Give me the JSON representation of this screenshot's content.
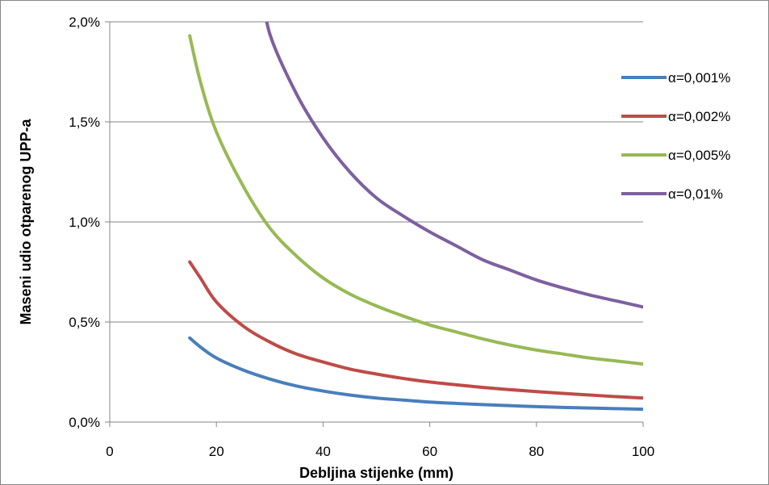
{
  "chart_data": {
    "type": "line",
    "title": "",
    "xlabel": "Debljina stijenke (mm)",
    "ylabel": "Maseni udio otparenog UPP-a",
    "xlim": [
      0,
      100
    ],
    "ylim": [
      0,
      2.0
    ],
    "x_ticks": [
      0,
      20,
      40,
      60,
      80,
      100
    ],
    "x_tick_labels": [
      "0",
      "20",
      "40",
      "60",
      "80",
      "100"
    ],
    "y_ticks": [
      0,
      0.5,
      1.0,
      1.5,
      2.0
    ],
    "y_tick_labels": [
      "0,0%",
      "0,5%",
      "1,0%",
      "1,5%",
      "2,0%"
    ],
    "grid": "horizontal",
    "legend_position": "right",
    "x": [
      15,
      17,
      20,
      25,
      30,
      35,
      40,
      45,
      50,
      55,
      60,
      65,
      70,
      75,
      80,
      85,
      90,
      95,
      100
    ],
    "series": [
      {
        "name": "α=0,001%",
        "color": "#4A7EBB",
        "values": [
          0.42,
          0.375,
          0.32,
          0.26,
          0.215,
          0.18,
          0.155,
          0.135,
          0.12,
          0.11,
          0.1,
          0.093,
          0.087,
          0.082,
          0.077,
          0.073,
          0.07,
          0.067,
          0.064
        ]
      },
      {
        "name": "α=0,002%",
        "color": "#BE4B48",
        "values": [
          0.8,
          0.72,
          0.6,
          0.48,
          0.4,
          0.34,
          0.3,
          0.265,
          0.24,
          0.218,
          0.2,
          0.186,
          0.173,
          0.162,
          0.152,
          0.143,
          0.135,
          0.127,
          0.12
        ]
      },
      {
        "name": "α=0,005%",
        "color": "#98B954",
        "values": [
          1.93,
          1.7,
          1.45,
          1.18,
          0.97,
          0.83,
          0.72,
          0.64,
          0.58,
          0.53,
          0.485,
          0.45,
          0.415,
          0.385,
          0.36,
          0.34,
          0.32,
          0.305,
          0.29
        ]
      },
      {
        "name": "α=0,01%",
        "color": "#7D60A0",
        "values": [
          null,
          null,
          null,
          null,
          1.94,
          1.64,
          1.42,
          1.25,
          1.12,
          1.03,
          0.95,
          0.88,
          0.81,
          0.76,
          0.71,
          0.67,
          0.635,
          0.605,
          0.575
        ]
      }
    ]
  }
}
